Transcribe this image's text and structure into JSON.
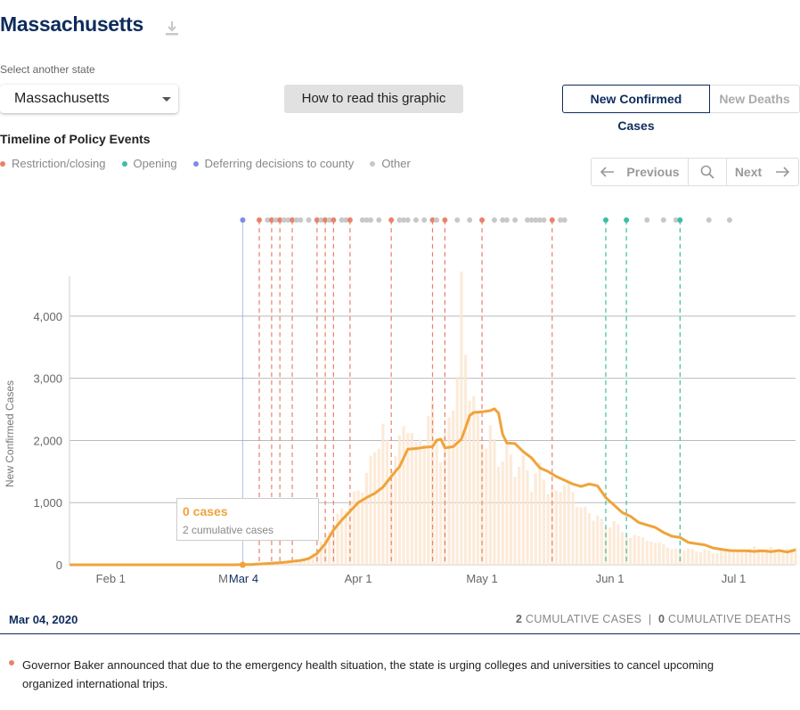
{
  "header": {
    "title": "Massachusetts",
    "download_icon": "download-icon"
  },
  "state_select": {
    "label": "Select another state",
    "value": "Massachusetts"
  },
  "how_to_read": "How to read this graphic",
  "metric_toggle": {
    "active": "New Confirmed Cases",
    "inactive": "New Deaths"
  },
  "timeline": {
    "title": "Timeline of Policy Events",
    "legend": [
      {
        "label": "Restriction/closing",
        "color": "#e8826b"
      },
      {
        "label": "Opening",
        "color": "#3bbfa0"
      },
      {
        "label": "Deferring decisions to county",
        "color": "#7b8ce8"
      },
      {
        "label": "Other",
        "color": "#c8c8c8"
      }
    ],
    "nav": {
      "previous": "Previous",
      "next": "Next"
    }
  },
  "tooltip": {
    "cases": "0 cases",
    "cumulative": "2 cumulative cases"
  },
  "selected": {
    "date": "Mar 04, 2020",
    "cum_cases_num": "2",
    "cum_cases_label": "CUMULATIVE CASES",
    "separator": "|",
    "cum_deaths_num": "0",
    "cum_deaths_label": "CUMULATIVE DEATHS"
  },
  "event": {
    "text": "Governor Baker announced that due to the emergency health situation, the state is urging colleges and universities to cancel upcoming organized international trips.",
    "color": "#e8826b"
  },
  "chart_data": {
    "type": "bar",
    "title": "",
    "ylabel": "New Confirmed Cases",
    "xlabel": "",
    "ylim": [
      0,
      4500
    ],
    "yticks": [
      0,
      1000,
      2000,
      3000,
      4000
    ],
    "ytick_labels": [
      "0",
      "1,000",
      "2,000",
      "3,000",
      "4,000"
    ],
    "x_start": "2020-01-22",
    "day_count": 177,
    "xticks": [
      {
        "label": "Feb 1",
        "day": 10
      },
      {
        "label": "M",
        "day": 42
      },
      {
        "label": "Apr 1",
        "day": 70
      },
      {
        "label": "May 1",
        "day": 100
      },
      {
        "label": "Jun 1",
        "day": 131
      },
      {
        "label": "Jul 1",
        "day": 161
      }
    ],
    "highlight": {
      "label": "Mar 4",
      "day": 42
    },
    "daily_key": [
      [
        0,
        0
      ],
      [
        40,
        0
      ],
      [
        42,
        0
      ],
      [
        48,
        8
      ],
      [
        52,
        30
      ],
      [
        56,
        60
      ],
      [
        58,
        120
      ],
      [
        60,
        250
      ],
      [
        62,
        450
      ],
      [
        64,
        650
      ],
      [
        66,
        850
      ],
      [
        68,
        1000
      ],
      [
        70,
        1150
      ],
      [
        72,
        1400
      ],
      [
        74,
        1800
      ],
      [
        76,
        2100
      ],
      [
        78,
        1600
      ],
      [
        80,
        1900
      ],
      [
        82,
        2300
      ],
      [
        84,
        1800
      ],
      [
        86,
        2100
      ],
      [
        88,
        2400
      ],
      [
        90,
        1700
      ],
      [
        92,
        2200
      ],
      [
        94,
        3000
      ],
      [
        95,
        4300
      ],
      [
        96,
        3200
      ],
      [
        98,
        2600
      ],
      [
        100,
        1900
      ],
      [
        102,
        2100
      ],
      [
        104,
        1600
      ],
      [
        106,
        1800
      ],
      [
        108,
        1500
      ],
      [
        110,
        1600
      ],
      [
        112,
        1300
      ],
      [
        114,
        1500
      ],
      [
        116,
        1200
      ],
      [
        118,
        1100
      ],
      [
        120,
        1300
      ],
      [
        122,
        1100
      ],
      [
        124,
        900
      ],
      [
        126,
        800
      ],
      [
        128,
        750
      ],
      [
        130,
        600
      ],
      [
        132,
        650
      ],
      [
        134,
        550
      ],
      [
        136,
        400
      ],
      [
        138,
        500
      ],
      [
        140,
        350
      ],
      [
        142,
        380
      ],
      [
        144,
        300
      ],
      [
        146,
        260
      ],
      [
        148,
        220
      ],
      [
        150,
        260
      ],
      [
        152,
        200
      ],
      [
        154,
        240
      ],
      [
        156,
        180
      ],
      [
        158,
        220
      ],
      [
        160,
        240
      ],
      [
        162,
        200
      ],
      [
        164,
        250
      ],
      [
        166,
        270
      ],
      [
        168,
        230
      ],
      [
        170,
        260
      ],
      [
        172,
        210
      ],
      [
        174,
        240
      ],
      [
        176,
        280
      ]
    ],
    "avg_key": [
      [
        0,
        0
      ],
      [
        40,
        0
      ],
      [
        44,
        5
      ],
      [
        48,
        20
      ],
      [
        52,
        40
      ],
      [
        56,
        70
      ],
      [
        58,
        100
      ],
      [
        60,
        180
      ],
      [
        62,
        340
      ],
      [
        64,
        560
      ],
      [
        66,
        720
      ],
      [
        68,
        860
      ],
      [
        70,
        1000
      ],
      [
        72,
        1080
      ],
      [
        74,
        1150
      ],
      [
        76,
        1250
      ],
      [
        78,
        1420
      ],
      [
        80,
        1580
      ],
      [
        82,
        1860
      ],
      [
        84,
        1870
      ],
      [
        86,
        1890
      ],
      [
        88,
        1900
      ],
      [
        89,
        2000
      ],
      [
        90,
        2020
      ],
      [
        91,
        1880
      ],
      [
        93,
        1900
      ],
      [
        95,
        2020
      ],
      [
        96,
        2200
      ],
      [
        97,
        2400
      ],
      [
        98,
        2450
      ],
      [
        100,
        2460
      ],
      [
        102,
        2480
      ],
      [
        103,
        2510
      ],
      [
        104,
        2440
      ],
      [
        105,
        2100
      ],
      [
        106,
        1960
      ],
      [
        108,
        1950
      ],
      [
        110,
        1820
      ],
      [
        112,
        1720
      ],
      [
        114,
        1560
      ],
      [
        116,
        1500
      ],
      [
        118,
        1420
      ],
      [
        120,
        1360
      ],
      [
        122,
        1300
      ],
      [
        124,
        1260
      ],
      [
        126,
        1300
      ],
      [
        128,
        1270
      ],
      [
        130,
        1080
      ],
      [
        132,
        960
      ],
      [
        134,
        840
      ],
      [
        136,
        780
      ],
      [
        138,
        680
      ],
      [
        140,
        640
      ],
      [
        142,
        600
      ],
      [
        144,
        520
      ],
      [
        146,
        460
      ],
      [
        148,
        440
      ],
      [
        150,
        360
      ],
      [
        152,
        340
      ],
      [
        154,
        320
      ],
      [
        156,
        270
      ],
      [
        158,
        250
      ],
      [
        160,
        230
      ],
      [
        162,
        225
      ],
      [
        164,
        225
      ],
      [
        166,
        215
      ],
      [
        168,
        225
      ],
      [
        170,
        210
      ],
      [
        172,
        230
      ],
      [
        174,
        205
      ],
      [
        176,
        240
      ]
    ],
    "policy_events": [
      {
        "day": 42,
        "type": "county"
      },
      {
        "day": 46,
        "type": "restriction"
      },
      {
        "day": 48,
        "type": "other"
      },
      {
        "day": 49,
        "type": "restriction"
      },
      {
        "day": 50,
        "type": "other"
      },
      {
        "day": 51,
        "type": "restriction"
      },
      {
        "day": 52,
        "type": "other"
      },
      {
        "day": 53,
        "type": "other"
      },
      {
        "day": 54,
        "type": "restriction"
      },
      {
        "day": 55,
        "type": "other"
      },
      {
        "day": 56,
        "type": "other"
      },
      {
        "day": 58,
        "type": "other"
      },
      {
        "day": 60,
        "type": "restriction"
      },
      {
        "day": 61,
        "type": "other"
      },
      {
        "day": 62,
        "type": "restriction"
      },
      {
        "day": 63,
        "type": "other"
      },
      {
        "day": 64,
        "type": "restriction"
      },
      {
        "day": 66,
        "type": "other"
      },
      {
        "day": 67,
        "type": "other"
      },
      {
        "day": 68,
        "type": "restriction"
      },
      {
        "day": 71,
        "type": "other"
      },
      {
        "day": 72,
        "type": "other"
      },
      {
        "day": 73,
        "type": "other"
      },
      {
        "day": 75,
        "type": "other"
      },
      {
        "day": 78,
        "type": "restriction"
      },
      {
        "day": 80,
        "type": "other"
      },
      {
        "day": 81,
        "type": "other"
      },
      {
        "day": 82,
        "type": "other"
      },
      {
        "day": 84,
        "type": "other"
      },
      {
        "day": 86,
        "type": "other"
      },
      {
        "day": 88,
        "type": "restriction"
      },
      {
        "day": 89,
        "type": "other"
      },
      {
        "day": 91,
        "type": "restriction"
      },
      {
        "day": 94,
        "type": "other"
      },
      {
        "day": 97,
        "type": "other"
      },
      {
        "day": 100,
        "type": "restriction"
      },
      {
        "day": 103,
        "type": "other"
      },
      {
        "day": 105,
        "type": "other"
      },
      {
        "day": 106,
        "type": "other"
      },
      {
        "day": 108,
        "type": "other"
      },
      {
        "day": 111,
        "type": "other"
      },
      {
        "day": 112,
        "type": "other"
      },
      {
        "day": 113,
        "type": "other"
      },
      {
        "day": 114,
        "type": "other"
      },
      {
        "day": 115,
        "type": "other"
      },
      {
        "day": 117,
        "type": "restriction"
      },
      {
        "day": 119,
        "type": "other"
      },
      {
        "day": 120,
        "type": "other"
      },
      {
        "day": 130,
        "type": "opening"
      },
      {
        "day": 135,
        "type": "opening"
      },
      {
        "day": 140,
        "type": "other"
      },
      {
        "day": 144,
        "type": "other"
      },
      {
        "day": 147,
        "type": "other"
      },
      {
        "day": 148,
        "type": "opening"
      },
      {
        "day": 155,
        "type": "other"
      },
      {
        "day": 160,
        "type": "other"
      }
    ]
  }
}
